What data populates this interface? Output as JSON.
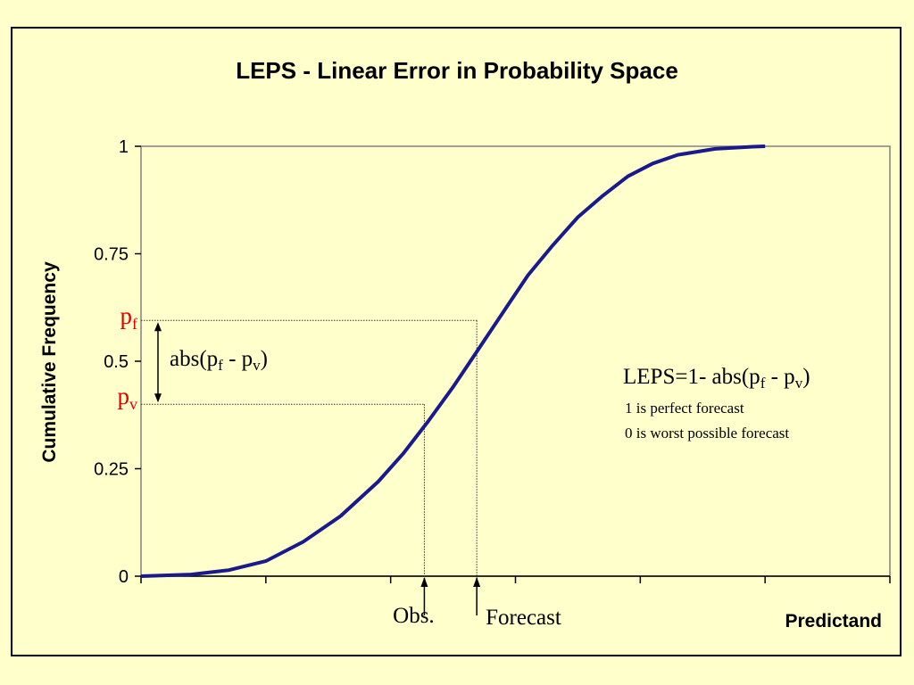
{
  "chart_data": {
    "type": "line",
    "title": "LEPS - Linear Error in Probability Space",
    "xlabel": "Predictand",
    "ylabel": "Cumulative Frequency",
    "ylim": [
      0,
      1
    ],
    "xlim": [
      0,
      6
    ],
    "y_ticks": [
      0,
      0.25,
      0.5,
      0.75,
      1
    ],
    "y_tick_labels": [
      "0",
      "0.25",
      "0.5",
      "0.75",
      "1"
    ],
    "x_ticks": [
      0,
      1,
      2,
      3,
      4,
      5,
      6
    ],
    "grid": false,
    "series": [
      {
        "color": "#1a1a8c",
        "x": [
          0,
          0.4,
          0.7,
          1.0,
          1.3,
          1.6,
          1.9,
          2.1,
          2.3,
          2.5,
          2.65,
          2.8,
          2.95,
          3.1,
          3.3,
          3.5,
          3.7,
          3.9,
          4.1,
          4.3,
          4.6,
          4.9,
          5.0
        ],
        "y": [
          0,
          0.004,
          0.014,
          0.035,
          0.08,
          0.14,
          0.22,
          0.285,
          0.36,
          0.44,
          0.505,
          0.57,
          0.635,
          0.7,
          0.77,
          0.835,
          0.885,
          0.93,
          0.96,
          0.98,
          0.994,
          0.999,
          1.0
        ]
      }
    ],
    "annotations": {
      "pf": {
        "base": "p",
        "sub": "f",
        "value": 0.595
      },
      "pv": {
        "base": "p",
        "sub": "v",
        "value": 0.4
      },
      "obs": {
        "label": "Obs.",
        "x": 2.27
      },
      "forecast": {
        "label": "Forecast",
        "x": 2.69
      },
      "abs_label": {
        "prefix": "abs(p",
        "sub1": "f",
        "mid": " - p",
        "sub2": "v",
        "suffix": ")"
      },
      "leps_formula": {
        "prefix": "LEPS=1- abs(p",
        "sub1": "f",
        "mid": " - p",
        "sub2": "v",
        "suffix": ")"
      },
      "note1": "1 is perfect forecast",
      "note2": "0 is worst possible forecast"
    }
  }
}
